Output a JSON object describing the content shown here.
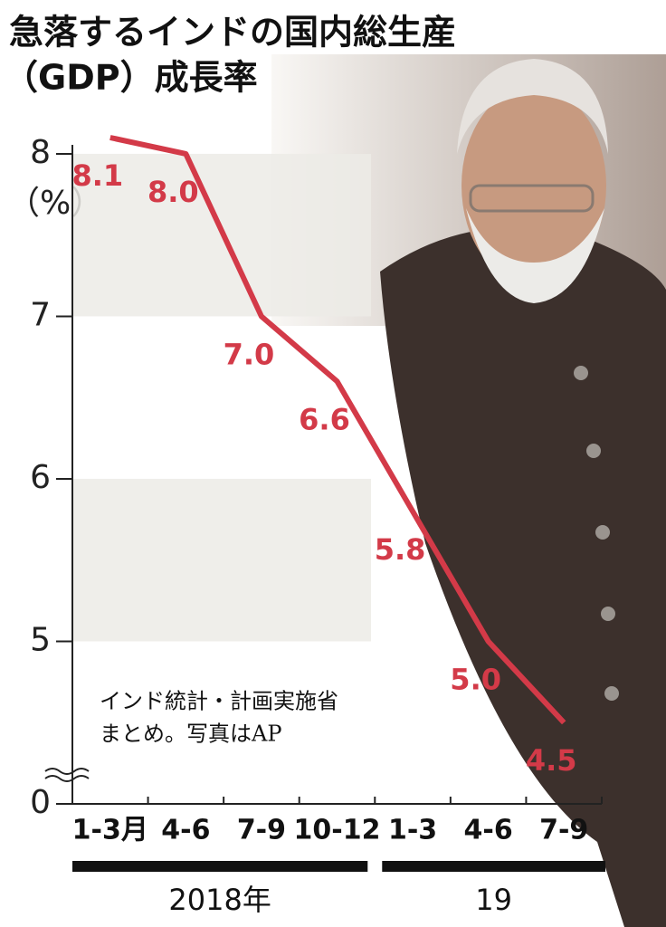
{
  "chart_data": {
    "type": "line",
    "title": [
      "急落するインドの国内総生産",
      "（GDP）成長率"
    ],
    "y_unit": "（%）",
    "categories": [
      "1-3月",
      "4-6",
      "7-9",
      "10-12",
      "1-3",
      "4-6",
      "7-9"
    ],
    "groups": [
      {
        "label": "2018年",
        "span": [
          0,
          3
        ]
      },
      {
        "label": "19",
        "span": [
          4,
          6
        ]
      }
    ],
    "values": [
      8.1,
      8.0,
      7.0,
      6.6,
      5.8,
      5.0,
      4.5
    ],
    "value_labels": [
      "8.1",
      "8.0",
      "7.0",
      "6.6",
      "5.8",
      "5.0",
      "4.5"
    ],
    "color": "#d33a48",
    "ylim": [
      0,
      8.1
    ],
    "y_break": [
      0,
      4
    ],
    "yticks": [
      0,
      5,
      6,
      7,
      8
    ],
    "grid": "bands",
    "note": [
      "インド統計・計画実施省",
      "まとめ。写真はAP"
    ]
  }
}
